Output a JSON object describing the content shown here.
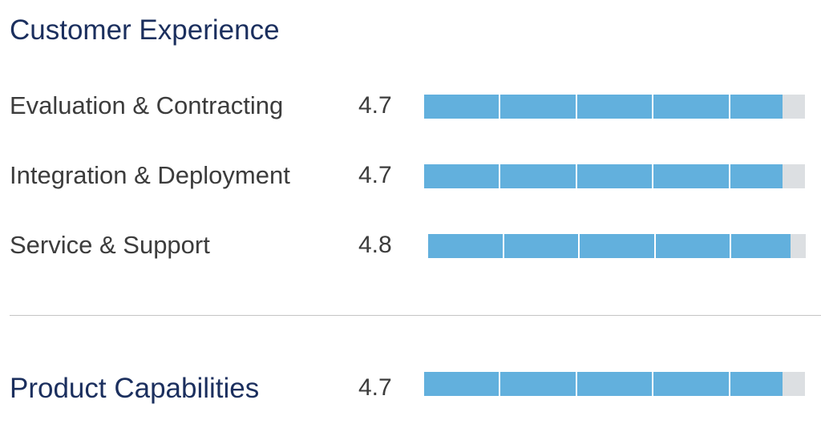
{
  "customer_experience": {
    "title": "Customer Experience",
    "max_rating": 5,
    "items": [
      {
        "label": "Evaluation & Contracting",
        "score": "4.7",
        "value": 4.7
      },
      {
        "label": "Integration & Deployment",
        "score": "4.7",
        "value": 4.7
      },
      {
        "label": "Service & Support",
        "score": "4.8",
        "value": 4.8
      }
    ]
  },
  "product_capabilities": {
    "title": "Product Capabilities",
    "score": "4.7",
    "value": 4.7,
    "max_rating": 5
  },
  "colors": {
    "title": "#1b2f5e",
    "text": "#3c3c3c",
    "bar_fill": "#62b0dd",
    "bar_track": "#dcdfe2",
    "divider": "#c4c4c4"
  }
}
